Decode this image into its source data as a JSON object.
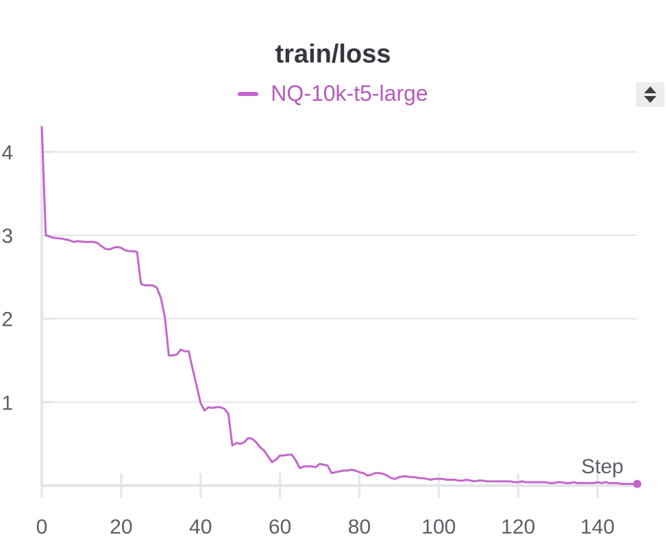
{
  "panel": {
    "title": "train/loss"
  },
  "chart_data": {
    "type": "line",
    "title": "train/loss",
    "xlabel": "Step",
    "ylabel": "",
    "xlim": [
      0,
      150
    ],
    "ylim": [
      0,
      4.3
    ],
    "x_ticks": [
      0,
      20,
      40,
      60,
      80,
      100,
      120,
      140
    ],
    "y_ticks": [
      1,
      2,
      3,
      4
    ],
    "grid": true,
    "legend_position": "top-center",
    "series": [
      {
        "name": "NQ-10k-t5-large",
        "color": "#c466cc",
        "points": [
          [
            0,
            4.3
          ],
          [
            1,
            3.0
          ],
          [
            3,
            2.97
          ],
          [
            5,
            2.96
          ],
          [
            7,
            2.94
          ],
          [
            8,
            2.92
          ],
          [
            9,
            2.93
          ],
          [
            11,
            2.92
          ],
          [
            13,
            2.92
          ],
          [
            14,
            2.91
          ],
          [
            15,
            2.87
          ],
          [
            16,
            2.84
          ],
          [
            17,
            2.83
          ],
          [
            18,
            2.85
          ],
          [
            19,
            2.86
          ],
          [
            20,
            2.85
          ],
          [
            21,
            2.82
          ],
          [
            22,
            2.81
          ],
          [
            23,
            2.81
          ],
          [
            24,
            2.8
          ],
          [
            25,
            2.42
          ],
          [
            26,
            2.4
          ],
          [
            27,
            2.4
          ],
          [
            28,
            2.4
          ],
          [
            29,
            2.37
          ],
          [
            30,
            2.25
          ],
          [
            31,
            2.02
          ],
          [
            32,
            1.56
          ],
          [
            33,
            1.56
          ],
          [
            34,
            1.57
          ],
          [
            35,
            1.63
          ],
          [
            36,
            1.61
          ],
          [
            37,
            1.61
          ],
          [
            38,
            1.4
          ],
          [
            39,
            1.2
          ],
          [
            40,
            0.99
          ],
          [
            41,
            0.9
          ],
          [
            42,
            0.94
          ],
          [
            43,
            0.93
          ],
          [
            44,
            0.94
          ],
          [
            45,
            0.94
          ],
          [
            46,
            0.92
          ],
          [
            47,
            0.86
          ],
          [
            48,
            0.48
          ],
          [
            49,
            0.51
          ],
          [
            50,
            0.5
          ],
          [
            51,
            0.52
          ],
          [
            52,
            0.57
          ],
          [
            53,
            0.56
          ],
          [
            54,
            0.52
          ],
          [
            55,
            0.46
          ],
          [
            56,
            0.42
          ],
          [
            57,
            0.35
          ],
          [
            58,
            0.28
          ],
          [
            59,
            0.31
          ],
          [
            60,
            0.36
          ],
          [
            61,
            0.36
          ],
          [
            62,
            0.37
          ],
          [
            63,
            0.37
          ],
          [
            64,
            0.3
          ],
          [
            65,
            0.21
          ],
          [
            66,
            0.23
          ],
          [
            67,
            0.23
          ],
          [
            68,
            0.23
          ],
          [
            69,
            0.22
          ],
          [
            70,
            0.26
          ],
          [
            71,
            0.25
          ],
          [
            72,
            0.24
          ],
          [
            73,
            0.15
          ],
          [
            74,
            0.16
          ],
          [
            75,
            0.17
          ],
          [
            76,
            0.18
          ],
          [
            77,
            0.18
          ],
          [
            78,
            0.19
          ],
          [
            79,
            0.18
          ],
          [
            80,
            0.16
          ],
          [
            81,
            0.15
          ],
          [
            82,
            0.12
          ],
          [
            83,
            0.13
          ],
          [
            84,
            0.15
          ],
          [
            85,
            0.15
          ],
          [
            86,
            0.14
          ],
          [
            87,
            0.12
          ],
          [
            88,
            0.09
          ],
          [
            89,
            0.08
          ],
          [
            90,
            0.1
          ],
          [
            91,
            0.11
          ],
          [
            92,
            0.11
          ],
          [
            93,
            0.1
          ],
          [
            94,
            0.1
          ],
          [
            95,
            0.09
          ],
          [
            96,
            0.09
          ],
          [
            97,
            0.08
          ],
          [
            98,
            0.07
          ],
          [
            99,
            0.08
          ],
          [
            100,
            0.08
          ],
          [
            101,
            0.08
          ],
          [
            102,
            0.07
          ],
          [
            103,
            0.07
          ],
          [
            104,
            0.07
          ],
          [
            105,
            0.06
          ],
          [
            106,
            0.06
          ],
          [
            107,
            0.07
          ],
          [
            108,
            0.06
          ],
          [
            109,
            0.05
          ],
          [
            110,
            0.06
          ],
          [
            111,
            0.06
          ],
          [
            112,
            0.05
          ],
          [
            113,
            0.05
          ],
          [
            114,
            0.05
          ],
          [
            115,
            0.05
          ],
          [
            116,
            0.05
          ],
          [
            117,
            0.05
          ],
          [
            118,
            0.05
          ],
          [
            119,
            0.04
          ],
          [
            120,
            0.04
          ],
          [
            121,
            0.05
          ],
          [
            122,
            0.04
          ],
          [
            123,
            0.04
          ],
          [
            124,
            0.04
          ],
          [
            125,
            0.04
          ],
          [
            126,
            0.04
          ],
          [
            127,
            0.04
          ],
          [
            128,
            0.03
          ],
          [
            129,
            0.03
          ],
          [
            130,
            0.04
          ],
          [
            131,
            0.04
          ],
          [
            132,
            0.03
          ],
          [
            133,
            0.03
          ],
          [
            134,
            0.04
          ],
          [
            135,
            0.03
          ],
          [
            136,
            0.03
          ],
          [
            137,
            0.03
          ],
          [
            138,
            0.03
          ],
          [
            139,
            0.03
          ],
          [
            140,
            0.04
          ],
          [
            141,
            0.03
          ],
          [
            142,
            0.04
          ],
          [
            143,
            0.03
          ],
          [
            144,
            0.03
          ],
          [
            145,
            0.03
          ],
          [
            146,
            0.02
          ],
          [
            147,
            0.02
          ],
          [
            148,
            0.02
          ],
          [
            149,
            0.02
          ],
          [
            150,
            0.02
          ]
        ]
      }
    ]
  }
}
